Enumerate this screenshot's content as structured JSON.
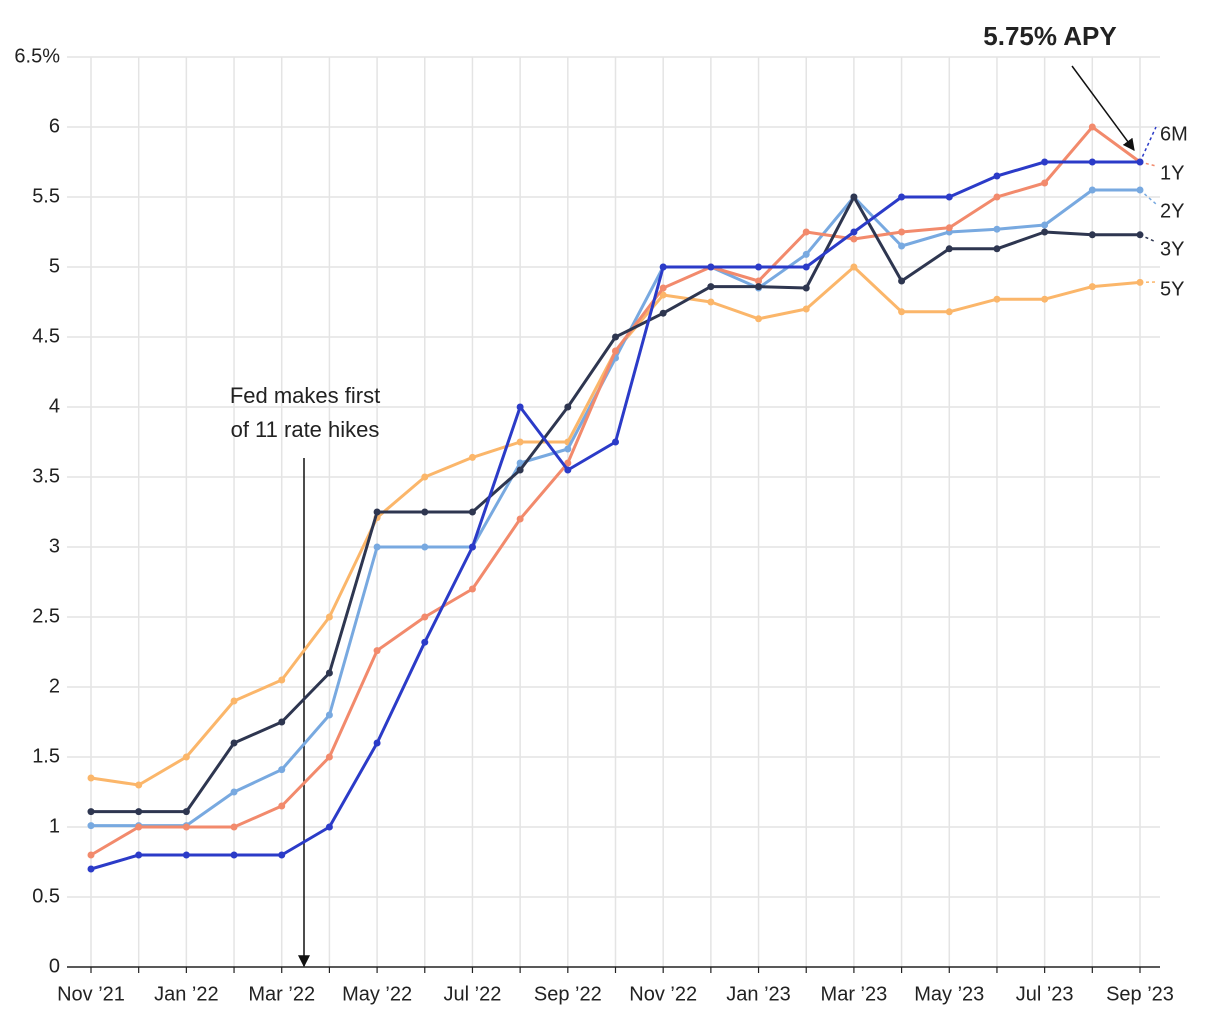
{
  "chart_data": {
    "type": "line",
    "categories": [
      "Nov ’21",
      null,
      "Jan ’22",
      null,
      "Mar ’22",
      null,
      "May ’22",
      null,
      "Jul ’22",
      null,
      "Sep ’22",
      null,
      "Nov ’22",
      null,
      "Jan ’23",
      null,
      "Mar ’23",
      null,
      "May ’23",
      null,
      "Jul ’23",
      null,
      "Sep ’23"
    ],
    "series": [
      {
        "name": "5Y",
        "color": "#fbb66a",
        "label_color": "#c77a1e",
        "values": [
          1.35,
          1.3,
          1.5,
          1.9,
          2.05,
          2.5,
          3.21,
          3.5,
          3.64,
          3.75,
          3.75,
          4.4,
          4.8,
          4.75,
          4.63,
          4.7,
          5.0,
          4.68,
          4.68,
          4.77,
          4.77,
          4.86,
          4.89
        ]
      },
      {
        "name": "2Y",
        "color": "#78a9e0",
        "label_color": "#4a86cc",
        "values": [
          1.01,
          1.01,
          1.01,
          1.25,
          1.41,
          1.8,
          3.0,
          3.0,
          3.0,
          3.6,
          3.7,
          4.35,
          5.0,
          5.0,
          4.85,
          5.09,
          5.5,
          5.15,
          5.25,
          5.27,
          5.3,
          5.55,
          5.55
        ]
      },
      {
        "name": "1Y",
        "color": "#f28a6c",
        "label_color": "#d4533a",
        "values": [
          0.8,
          1.0,
          1.0,
          1.0,
          1.15,
          1.5,
          2.26,
          2.5,
          2.7,
          3.2,
          3.6,
          4.4,
          4.85,
          5.0,
          4.9,
          5.25,
          5.2,
          5.25,
          5.28,
          5.5,
          5.6,
          6.0,
          5.75
        ]
      },
      {
        "name": "3Y",
        "color": "#2e3650",
        "label_color": "#2e3650",
        "values": [
          1.11,
          1.11,
          1.11,
          1.6,
          1.75,
          2.1,
          3.25,
          3.25,
          3.25,
          3.55,
          4.0,
          4.5,
          4.67,
          4.86,
          4.86,
          4.85,
          5.5,
          4.9,
          5.13,
          5.13,
          5.25,
          5.23,
          5.23
        ]
      },
      {
        "name": "6M",
        "color": "#2b3bc8",
        "label_color": "#2b3bc8",
        "values": [
          0.7,
          0.8,
          0.8,
          0.8,
          0.8,
          1.0,
          1.6,
          2.32,
          3.0,
          4.0,
          3.55,
          3.75,
          5.0,
          5.0,
          5.0,
          5.0,
          5.25,
          5.5,
          5.5,
          5.65,
          5.75,
          5.75,
          5.75
        ]
      }
    ],
    "ylim": [
      0,
      6.5
    ],
    "yticks": [
      0,
      0.5,
      1,
      1.5,
      2,
      2.5,
      3,
      3.5,
      4,
      4.5,
      5,
      5.5,
      6,
      {
        "value": 6.5,
        "label": "6.5%"
      }
    ],
    "grid": true,
    "annotations": [
      {
        "lines": [
          "5.75% APY"
        ]
      },
      {
        "lines": [
          "Fed makes first",
          "of 11 rate hikes"
        ]
      }
    ]
  }
}
